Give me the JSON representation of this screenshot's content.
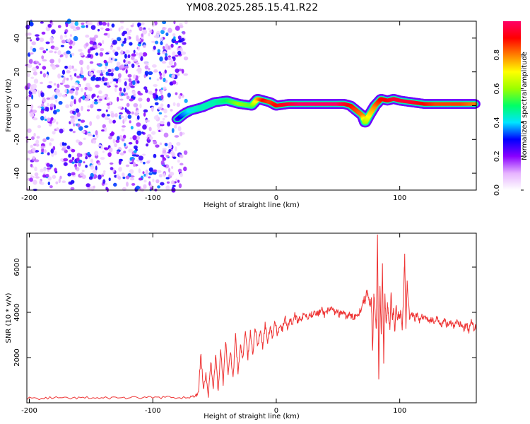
{
  "figure_title": "YM08.2025.285.15.41.R22",
  "chart_data": [
    {
      "type": "heatmap",
      "title": "YM08.2025.285.15.41.R22",
      "xlabel": "Height of straight line (km)",
      "ylabel": "Frequency (Hz)",
      "xlim": [
        -202,
        162
      ],
      "ylim": [
        -50,
        50
      ],
      "xticks": [
        -200,
        -100,
        0,
        100
      ],
      "xtick_labels": [
        "-200",
        "-100",
        "0",
        "100"
      ],
      "yticks": [
        -40,
        -20,
        0,
        20,
        40
      ],
      "ytick_labels": [
        "-40",
        "-20",
        "0",
        "20",
        "40"
      ],
      "noise_region": {
        "x": [
          -202,
          -73
        ],
        "y": [
          -50,
          50
        ],
        "amplitude": "0.05-0.35"
      },
      "ridge": {
        "description": "Main spectral ridge (frequency vs height)",
        "x": [
          -80,
          -75,
          -70,
          -60,
          -50,
          -40,
          -30,
          -20,
          -15,
          -10,
          -5,
          0,
          10,
          20,
          30,
          40,
          50,
          55,
          60,
          65,
          70,
          72,
          75,
          80,
          85,
          90,
          95,
          100,
          110,
          120,
          130,
          140,
          150,
          162
        ],
        "freq": [
          -8,
          -5,
          -3,
          -1,
          2,
          3,
          1,
          0,
          4,
          3,
          2,
          0,
          1,
          1,
          1,
          1,
          1,
          1,
          0,
          -3,
          -6,
          -10,
          -6,
          0,
          4,
          3,
          4,
          3,
          2,
          1,
          1,
          1,
          1,
          1
        ],
        "amplitude": [
          0.25,
          0.35,
          0.4,
          0.45,
          0.45,
          0.5,
          0.6,
          0.55,
          0.75,
          0.9,
          0.85,
          0.9,
          0.95,
          1.0,
          1.0,
          1.0,
          1.0,
          0.95,
          0.9,
          0.85,
          0.8,
          0.6,
          0.7,
          0.8,
          0.9,
          0.9,
          0.95,
          0.95,
          0.95,
          0.9,
          0.85,
          0.85,
          0.85,
          0.8
        ]
      },
      "colorbar": {
        "label": "Normalized spectral amplitude",
        "range": [
          0,
          1
        ],
        "ticks": [
          0.0,
          0.2,
          0.4,
          0.6,
          0.8
        ],
        "tick_labels": [
          "0.0",
          "0.2",
          "0.4",
          "0.6",
          "0.8"
        ],
        "colors": [
          "#ffffff",
          "#e6b3ff",
          "#8a00ff",
          "#0000ff",
          "#00e5ff",
          "#00ff66",
          "#9aff00",
          "#ffff00",
          "#ff8000",
          "#ff0000",
          "#ff0066"
        ]
      }
    },
    {
      "type": "line",
      "xlabel": "Height of straight line (km)",
      "ylabel": "SNR (10 * v/v)",
      "xlim": [
        -202,
        162
      ],
      "ylim": [
        0,
        7500
      ],
      "xticks": [
        -200,
        -100,
        0,
        100
      ],
      "xtick_labels": [
        "-200",
        "-100",
        "0",
        "100"
      ],
      "yticks": [
        2000,
        4000,
        6000
      ],
      "ytick_labels": [
        "2000",
        "4000",
        "6000"
      ],
      "series": [
        {
          "name": "SNR",
          "color": "#ee3333",
          "x": [
            -202,
            -190,
            -180,
            -170,
            -160,
            -150,
            -140,
            -130,
            -120,
            -110,
            -100,
            -90,
            -80,
            -70,
            -65,
            -63,
            -61,
            -59,
            -57,
            -55,
            -53,
            -51,
            -49,
            -47,
            -45,
            -43,
            -41,
            -39,
            -37,
            -35,
            -33,
            -31,
            -29,
            -27,
            -25,
            -23,
            -21,
            -19,
            -17,
            -15,
            -13,
            -11,
            -9,
            -7,
            -5,
            -3,
            -1,
            1,
            3,
            5,
            7,
            9,
            11,
            13,
            15,
            17,
            19,
            21,
            23,
            25,
            27,
            29,
            31,
            33,
            35,
            37,
            39,
            41,
            43,
            45,
            47,
            49,
            51,
            53,
            55,
            57,
            59,
            61,
            63,
            65,
            67,
            69,
            71,
            72,
            73,
            74,
            75,
            76,
            77,
            78,
            79,
            80,
            81,
            82,
            83,
            84,
            85,
            86,
            87,
            88,
            89,
            90,
            91,
            92,
            93,
            94,
            95,
            96,
            97,
            98,
            99,
            100,
            101,
            102,
            103,
            104,
            105,
            106,
            108,
            110,
            112,
            114,
            116,
            118,
            120,
            122,
            124,
            126,
            128,
            130,
            132,
            134,
            136,
            138,
            140,
            142,
            144,
            146,
            148,
            150,
            152,
            154,
            156,
            158,
            160,
            162
          ],
          "y": [
            200,
            180,
            230,
            190,
            210,
            220,
            200,
            240,
            210,
            230,
            220,
            250,
            230,
            260,
            280,
            400,
            2200,
            500,
            1400,
            300,
            1800,
            700,
            2100,
            500,
            2400,
            900,
            2700,
            1200,
            2300,
            1000,
            3000,
            1300,
            2500,
            1900,
            3300,
            2000,
            3100,
            2200,
            3400,
            2400,
            3200,
            2500,
            3500,
            2700,
            3400,
            2900,
            3600,
            3000,
            3500,
            3200,
            3800,
            3300,
            3700,
            3500,
            3900,
            3600,
            3800,
            3700,
            4000,
            3800,
            3900,
            3900,
            4100,
            3900,
            4000,
            4100,
            3900,
            4100,
            4000,
            4200,
            4000,
            4100,
            3900,
            4000,
            3900,
            3800,
            3900,
            3800,
            3800,
            3900,
            4000,
            4200,
            4600,
            4400,
            5000,
            4800,
            4500,
            4300,
            4600,
            2200,
            4700,
            4200,
            3200,
            7400,
            900,
            5200,
            2900,
            6100,
            1800,
            4800,
            3400,
            4300,
            3800,
            3300,
            5000,
            3600,
            4200,
            3100,
            4400,
            3700,
            3900,
            3800,
            4000,
            3200,
            4600,
            6500,
            3400,
            5400,
            3700,
            4000,
            3700,
            3900,
            3600,
            3800,
            3700,
            3800,
            3600,
            3700,
            3500,
            3700,
            3600,
            3500,
            3700,
            3400,
            3600,
            3500,
            3300,
            3600,
            3400,
            3500,
            3300,
            3500,
            3200,
            3600,
            3300,
            3400
          ]
        }
      ]
    }
  ]
}
